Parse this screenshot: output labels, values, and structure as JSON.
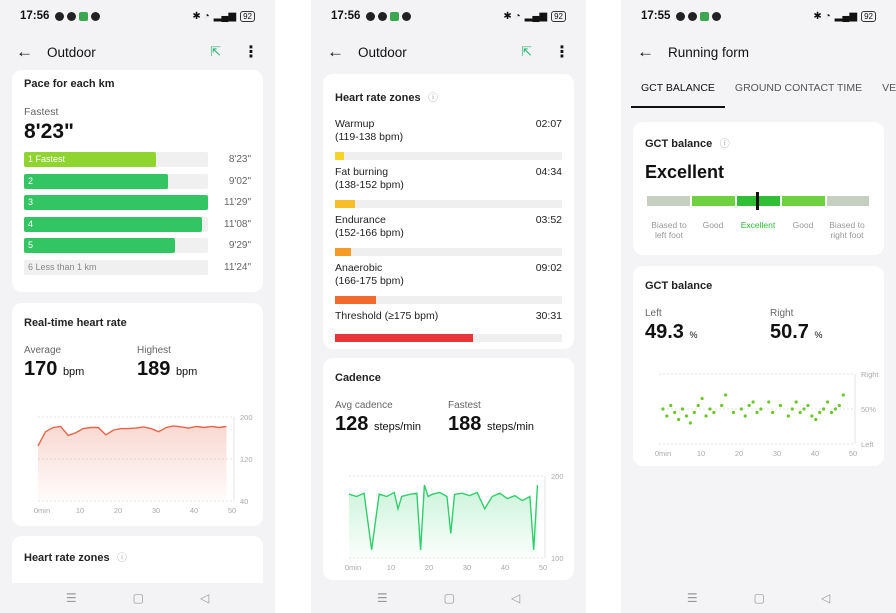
{
  "status": {
    "time_1": "17:56",
    "time_2": "17:56",
    "time_3": "17:55",
    "battery": "92"
  },
  "screen1": {
    "title": "Outdoor",
    "pace": {
      "title": "Pace for each km",
      "fastest_label": "Fastest",
      "fastest_value": "8'23\"",
      "rows": [
        {
          "label": "1 Fastest",
          "value": "8'23\"",
          "fraction": 0.72,
          "color": "#8fd42f"
        },
        {
          "label": "2",
          "value": "9'02\"",
          "fraction": 0.78,
          "color": "#33c463"
        },
        {
          "label": "3",
          "value": "11'29\"",
          "fraction": 1.0,
          "color": "#33c463"
        },
        {
          "label": "4",
          "value": "11'08\"",
          "fraction": 0.97,
          "color": "#33c463"
        },
        {
          "label": "5",
          "value": "9'29\"",
          "fraction": 0.82,
          "color": "#33c463"
        },
        {
          "label": "6 Less than 1 km",
          "value": "11'24\"",
          "fraction": 0,
          "color": "#33c463"
        }
      ]
    },
    "heart": {
      "title": "Real-time heart rate",
      "avg_label": "Average",
      "avg_value": "170",
      "avg_unit": "bpm",
      "high_label": "Highest",
      "high_value": "189",
      "high_unit": "bpm"
    },
    "zones_title": "Heart rate zones"
  },
  "screen2": {
    "title": "Outdoor",
    "zones": {
      "title": "Heart rate zones",
      "items": [
        {
          "name": "Warmup",
          "range": "(119-138 bpm)",
          "time": "02:07",
          "fraction": 0.04,
          "color": "#f5d328"
        },
        {
          "name": "Fat burning",
          "range": "(138-152 bpm)",
          "time": "04:34",
          "fraction": 0.09,
          "color": "#f7be2a"
        },
        {
          "name": "Endurance",
          "range": "(152-166 bpm)",
          "time": "03:52",
          "fraction": 0.07,
          "color": "#f59a25"
        },
        {
          "name": "Anaerobic",
          "range": "(166-175 bpm)",
          "time": "09:02",
          "fraction": 0.18,
          "color": "#f26a2c"
        },
        {
          "name": "Threshold (≥175 bpm)",
          "range": "",
          "time": "30:31",
          "fraction": 0.61,
          "color": "#e8353a"
        }
      ]
    },
    "cadence": {
      "title": "Cadence",
      "avg_label": "Avg cadence",
      "avg_value": "128",
      "avg_unit": "steps/min",
      "fast_label": "Fastest",
      "fast_value": "188",
      "fast_unit": "steps/min"
    }
  },
  "screen3": {
    "title": "Running form",
    "tabs": [
      "GCT BALANCE",
      "GROUND CONTACT TIME",
      "VERT"
    ],
    "balance": {
      "title": "GCT balance",
      "rating": "Excellent",
      "scale": [
        "Biased to left foot",
        "Good",
        "Excellent",
        "Good",
        "Biased to right foot"
      ]
    },
    "detail": {
      "title": "GCT balance",
      "left_label": "Left",
      "left_value": "49.3",
      "left_unit": "%",
      "right_label": "Right",
      "right_value": "50.7",
      "right_unit": "%"
    }
  },
  "chart_data": [
    {
      "type": "area",
      "title": "Real-time heart rate",
      "x": [
        0,
        2,
        4,
        6,
        8,
        10,
        12,
        14,
        16,
        18,
        20,
        22,
        24,
        26,
        28,
        30,
        32,
        34,
        36,
        38,
        40,
        42,
        44,
        46,
        48,
        50
      ],
      "y": [
        145,
        172,
        180,
        182,
        165,
        170,
        178,
        180,
        180,
        166,
        175,
        178,
        178,
        179,
        181,
        178,
        172,
        180,
        183,
        181,
        179,
        182,
        180,
        182,
        180,
        182
      ],
      "xticks": [
        "0min",
        "10",
        "20",
        "30",
        "40",
        "50"
      ],
      "yticks": [
        200,
        120,
        40
      ],
      "ylim": [
        40,
        200
      ],
      "xlim": [
        0,
        52
      ]
    },
    {
      "type": "line",
      "title": "Cadence",
      "x": [
        0,
        2,
        4,
        6,
        8,
        10,
        12,
        13,
        14,
        16,
        18,
        19,
        20,
        21,
        22,
        24,
        26,
        27,
        28,
        30,
        32,
        34,
        36,
        38,
        40,
        42,
        44,
        46,
        48,
        49,
        50
      ],
      "y": [
        156,
        150,
        158,
        20,
        156,
        150,
        160,
        120,
        150,
        155,
        158,
        20,
        178,
        150,
        155,
        160,
        150,
        60,
        155,
        158,
        152,
        160,
        120,
        150,
        158,
        145,
        152,
        140,
        150,
        20,
        178
      ],
      "xticks": [
        "0min",
        "10",
        "20",
        "30",
        "40",
        "50"
      ],
      "yticks": [
        200,
        100
      ],
      "ylim": [
        0,
        200
      ],
      "xlim": [
        0,
        52
      ]
    },
    {
      "type": "scatter",
      "title": "GCT balance",
      "x": [
        1,
        2,
        3,
        4,
        5,
        6,
        7,
        8,
        9,
        10,
        11,
        12,
        13,
        14,
        16,
        17,
        19,
        21,
        22,
        23,
        24,
        25,
        26,
        28,
        29,
        31,
        33,
        34,
        35,
        36,
        37,
        38,
        39,
        40,
        41,
        42,
        43,
        44,
        45,
        46,
        47
      ],
      "y": [
        50,
        49,
        50.5,
        49.5,
        48.5,
        50,
        49,
        48,
        49.5,
        50.5,
        51.5,
        49,
        50,
        49.5,
        50.5,
        52,
        49.5,
        50,
        49,
        50.5,
        51,
        49.5,
        50,
        51,
        49.5,
        50.5,
        49,
        50,
        51,
        49.5,
        50,
        50.5,
        49,
        48.5,
        49.5,
        50,
        51,
        49.5,
        50,
        50.5,
        52
      ],
      "xticks": [
        "0min",
        "10",
        "20",
        "30",
        "40",
        "50"
      ],
      "yticks": [
        "Right",
        "50%",
        "Left"
      ],
      "ylim": [
        45,
        55
      ],
      "xlim": [
        0,
        50
      ]
    }
  ]
}
